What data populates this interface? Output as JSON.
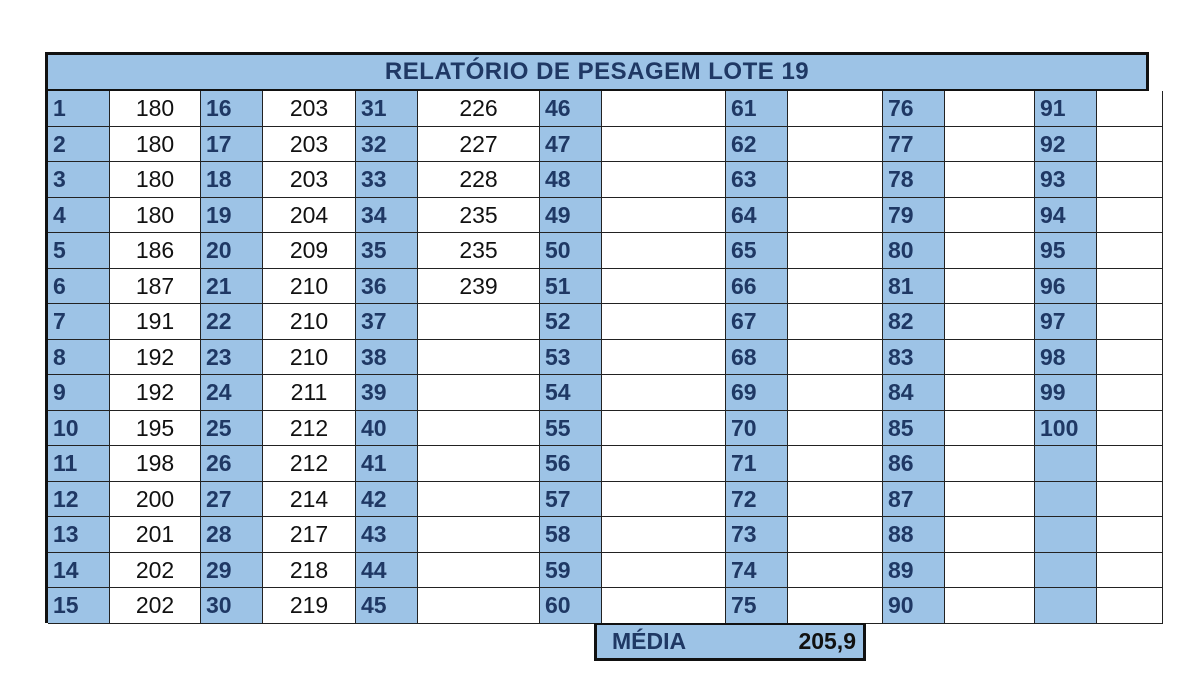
{
  "title": "RELATÓRIO DE PESAGEM LOTE 19",
  "columns": [
    {
      "ids": [
        "1",
        "2",
        "3",
        "4",
        "5",
        "6",
        "7",
        "8",
        "9",
        "10",
        "11",
        "12",
        "13",
        "14",
        "15"
      ],
      "values": [
        "180",
        "180",
        "180",
        "180",
        "186",
        "187",
        "191",
        "192",
        "192",
        "195",
        "198",
        "200",
        "201",
        "202",
        "202"
      ]
    },
    {
      "ids": [
        "16",
        "17",
        "18",
        "19",
        "20",
        "21",
        "22",
        "23",
        "24",
        "25",
        "26",
        "27",
        "28",
        "29",
        "30"
      ],
      "values": [
        "203",
        "203",
        "203",
        "204",
        "209",
        "210",
        "210",
        "210",
        "211",
        "212",
        "212",
        "214",
        "217",
        "218",
        "219"
      ]
    },
    {
      "ids": [
        "31",
        "32",
        "33",
        "34",
        "35",
        "36",
        "37",
        "38",
        "39",
        "40",
        "41",
        "42",
        "43",
        "44",
        "45"
      ],
      "values": [
        "226",
        "227",
        "228",
        "235",
        "235",
        "239",
        "",
        "",
        "",
        "",
        "",
        "",
        "",
        "",
        ""
      ]
    },
    {
      "ids": [
        "46",
        "47",
        "48",
        "49",
        "50",
        "51",
        "52",
        "53",
        "54",
        "55",
        "56",
        "57",
        "58",
        "59",
        "60"
      ],
      "values": [
        "",
        "",
        "",
        "",
        "",
        "",
        "",
        "",
        "",
        "",
        "",
        "",
        "",
        "",
        ""
      ]
    },
    {
      "ids": [
        "61",
        "62",
        "63",
        "64",
        "65",
        "66",
        "67",
        "68",
        "69",
        "70",
        "71",
        "72",
        "73",
        "74",
        "75"
      ],
      "values": [
        "",
        "",
        "",
        "",
        "",
        "",
        "",
        "",
        "",
        "",
        "",
        "",
        "",
        "",
        ""
      ]
    },
    {
      "ids": [
        "76",
        "77",
        "78",
        "79",
        "80",
        "81",
        "82",
        "83",
        "84",
        "85",
        "86",
        "87",
        "88",
        "89",
        "90"
      ],
      "values": [
        "",
        "",
        "",
        "",
        "",
        "",
        "",
        "",
        "",
        "",
        "",
        "",
        "",
        "",
        ""
      ]
    },
    {
      "ids": [
        "91",
        "92",
        "93",
        "94",
        "95",
        "96",
        "97",
        "98",
        "99",
        "100",
        "",
        "",
        "",
        "",
        ""
      ],
      "values": [
        "",
        "",
        "",
        "",
        "",
        "",
        "",
        "",
        "",
        "",
        "",
        "",
        "",
        "",
        ""
      ]
    }
  ],
  "summary": {
    "label": "MÉDIA",
    "value": "205,9"
  }
}
